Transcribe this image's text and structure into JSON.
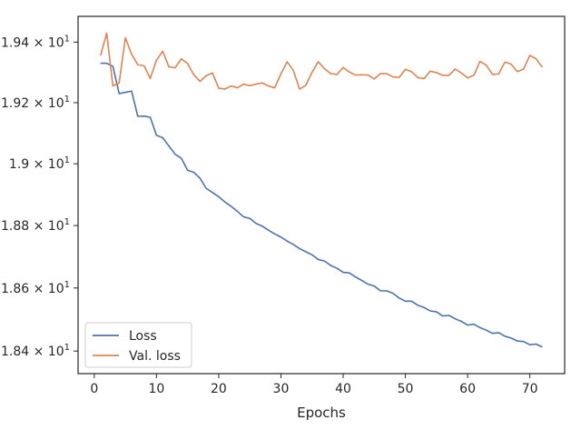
{
  "chart_data": {
    "type": "line",
    "title": "",
    "xlabel": "Epochs",
    "ylabel": "",
    "xlim": [
      -2.6,
      75.6
    ],
    "ylim": [
      18.329,
      19.486
    ],
    "yscale": "log",
    "grid": false,
    "legend_position": "lower-left",
    "x_ticks": [
      0,
      10,
      20,
      30,
      40,
      50,
      60,
      70
    ],
    "x_tick_labels": [
      "0",
      "10",
      "20",
      "30",
      "40",
      "50",
      "60",
      "70"
    ],
    "y_ticks": [
      18.4,
      18.6,
      18.8,
      19.0,
      19.2,
      19.4
    ],
    "y_tick_labels": [
      {
        "mantissa": "1.84",
        "base": "10",
        "exp": "1"
      },
      {
        "mantissa": "1.86",
        "base": "10",
        "exp": "1"
      },
      {
        "mantissa": "1.88",
        "base": "10",
        "exp": "1"
      },
      {
        "mantissa": "1.9",
        "base": "10",
        "exp": "1"
      },
      {
        "mantissa": "1.92",
        "base": "10",
        "exp": "1"
      },
      {
        "mantissa": "1.94",
        "base": "10",
        "exp": "1"
      }
    ],
    "x": [
      1,
      2,
      3,
      4,
      5,
      6,
      7,
      8,
      9,
      10,
      11,
      12,
      13,
      14,
      15,
      16,
      17,
      18,
      19,
      20,
      21,
      22,
      23,
      24,
      25,
      26,
      27,
      28,
      29,
      30,
      31,
      32,
      33,
      34,
      35,
      36,
      37,
      38,
      39,
      40,
      41,
      42,
      43,
      44,
      45,
      46,
      47,
      48,
      49,
      50,
      51,
      52,
      53,
      54,
      55,
      56,
      57,
      58,
      59,
      60,
      61,
      62,
      63,
      64,
      65,
      66,
      67,
      68,
      69,
      70,
      71,
      72
    ],
    "series": [
      {
        "name": "Loss",
        "color": "#4c72b0",
        "values": [
          19.33,
          19.33,
          19.32,
          19.23,
          19.234,
          19.238,
          19.155,
          19.156,
          19.152,
          19.093,
          19.085,
          19.058,
          19.031,
          19.018,
          18.979,
          18.972,
          18.953,
          18.92,
          18.907,
          18.893,
          18.876,
          18.862,
          18.846,
          18.828,
          18.823,
          18.807,
          18.798,
          18.785,
          18.773,
          18.763,
          18.75,
          18.739,
          18.726,
          18.716,
          18.706,
          18.691,
          18.686,
          18.672,
          18.663,
          18.65,
          18.648,
          18.635,
          18.624,
          18.612,
          18.606,
          18.591,
          18.591,
          18.583,
          18.568,
          18.558,
          18.558,
          18.545,
          18.538,
          18.527,
          18.524,
          18.511,
          18.513,
          18.502,
          18.494,
          18.482,
          18.485,
          18.474,
          18.466,
          18.456,
          18.458,
          18.447,
          18.441,
          18.432,
          18.43,
          18.42,
          18.422,
          18.413
        ]
      },
      {
        "name": "Val. loss",
        "color": "#dd8452",
        "values": [
          19.355,
          19.43,
          19.255,
          19.265,
          19.415,
          19.36,
          19.325,
          19.322,
          19.28,
          19.34,
          19.37,
          19.318,
          19.315,
          19.345,
          19.329,
          19.292,
          19.27,
          19.289,
          19.298,
          19.248,
          19.245,
          19.255,
          19.249,
          19.261,
          19.256,
          19.261,
          19.265,
          19.255,
          19.249,
          19.295,
          19.335,
          19.306,
          19.245,
          19.257,
          19.3,
          19.335,
          19.312,
          19.296,
          19.293,
          19.316,
          19.301,
          19.291,
          19.292,
          19.291,
          19.278,
          19.296,
          19.296,
          19.285,
          19.283,
          19.31,
          19.302,
          19.283,
          19.279,
          19.304,
          19.299,
          19.29,
          19.29,
          19.311,
          19.298,
          19.282,
          19.29,
          19.336,
          19.324,
          19.293,
          19.295,
          19.334,
          19.327,
          19.302,
          19.311,
          19.356,
          19.345,
          19.317
        ]
      }
    ]
  }
}
